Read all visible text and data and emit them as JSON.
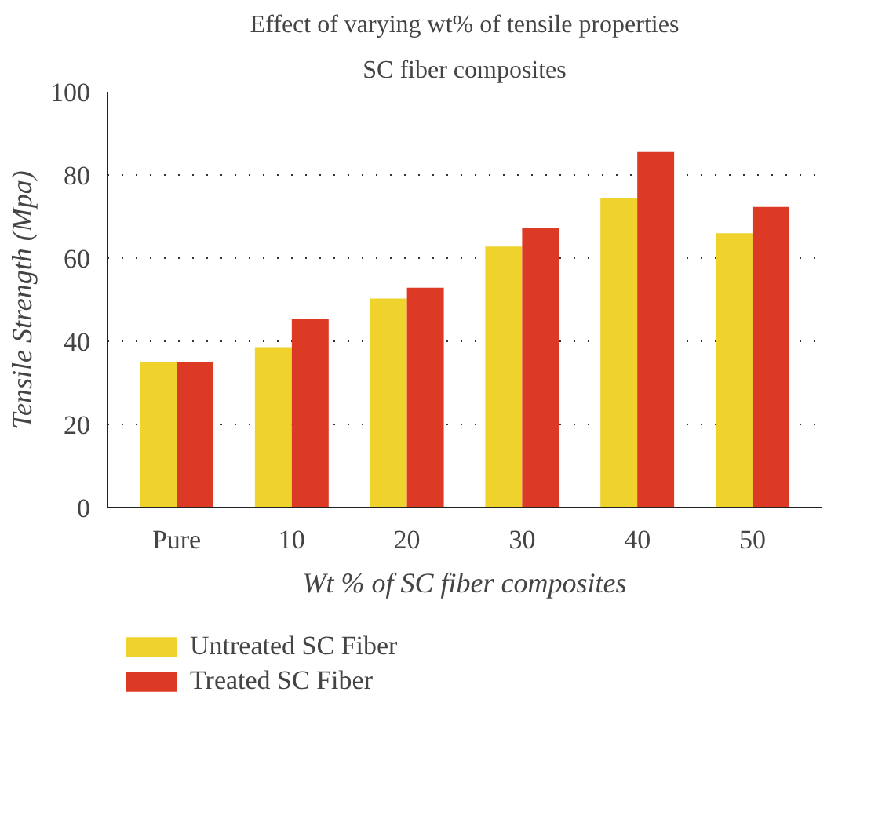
{
  "chart_data": {
    "type": "bar",
    "title": "Effect of varying wt% of tensile properties",
    "subtitle": "SC fiber composites",
    "xlabel": "Wt % of SC fiber composites",
    "ylabel": "Tensile Strength (Mpa)",
    "categories": [
      "Pure",
      "10",
      "20",
      "30",
      "40",
      "50"
    ],
    "series": [
      {
        "name": "Untreated SC Fiber",
        "color": "#f0d22c",
        "values": [
          35,
          38.6,
          50.3,
          62.8,
          74.4,
          66.0
        ]
      },
      {
        "name": "Treated SC Fiber",
        "color": "#dd3a26",
        "values": [
          35,
          45.4,
          52.9,
          67.2,
          85.5,
          72.3
        ]
      }
    ],
    "ylim": [
      0,
      100
    ],
    "yticks": [
      0,
      20,
      40,
      60,
      80,
      100
    ],
    "grid": "y",
    "legend": "bottom"
  }
}
